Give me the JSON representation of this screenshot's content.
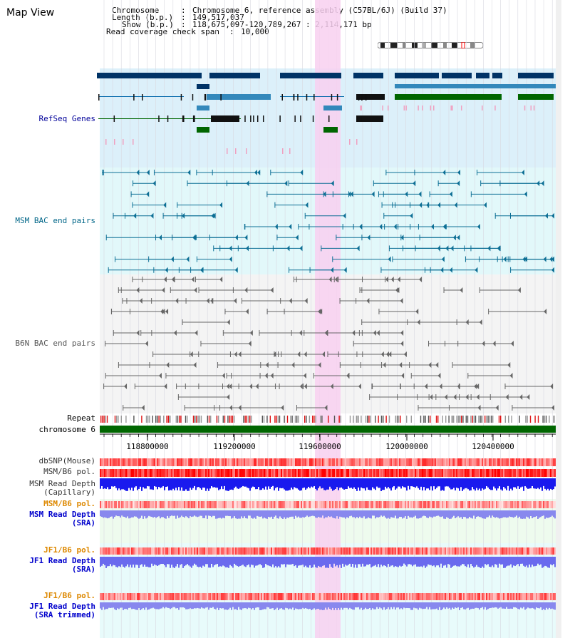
{
  "title": "Map View",
  "info": {
    "chromosome_key": "Chromosome",
    "chromosome_val": "Chromosome 6, reference assembly (C57BL/6J) (Build 37)",
    "length_key": "Length (b.p.)",
    "length_val": "149,517,037",
    "show_key": "Show (b.p.)",
    "show_val": "118,675,097-120,789,267 : 2,114,171 bp",
    "span_key": "Read coverage check span",
    "span_val": "10,000"
  },
  "tracks": {
    "refseq": "RefSeq Genes",
    "msm_bac": "MSM BAC end pairs",
    "b6n_bac": "B6N BAC end pairs",
    "repeat": "Repeat",
    "chromosome": "chromosome 6",
    "dbsnp": "dbSNP(Mouse)",
    "msm_pol": "MSM/B6 pol.",
    "msm_depth_cap_1": "MSM Read Depth",
    "msm_depth_cap_2": "(Capillary)",
    "msm_pol_sra": "MSM/B6 pol.",
    "msm_depth_sra_1": "MSM Read Depth",
    "msm_depth_sra_2": "(SRA)",
    "jf1_pol": "JF1/B6 pol.",
    "jf1_depth_1": "JF1 Read Depth",
    "jf1_depth_2": "(SRA)",
    "jf1_pol_trim": "JF1/B6 pol.",
    "jf1_depth_trim_1": "JF1 Read Depth",
    "jf1_depth_trim_2": "(SRA trimmed)"
  },
  "axis_ticks": [
    "118800000",
    "119200000",
    "119600000",
    "120000000",
    "120400000"
  ],
  "colors": {
    "refseq_label": "#000099",
    "msm_label": "#006688",
    "b6n_label": "#555555",
    "orange_label": "#dd8800",
    "blue_label": "#0000cc",
    "highlight": "#f8d0f0",
    "gene_dark": "#003366",
    "gene_mid": "#3388bb",
    "gene_green": "#006600"
  }
}
